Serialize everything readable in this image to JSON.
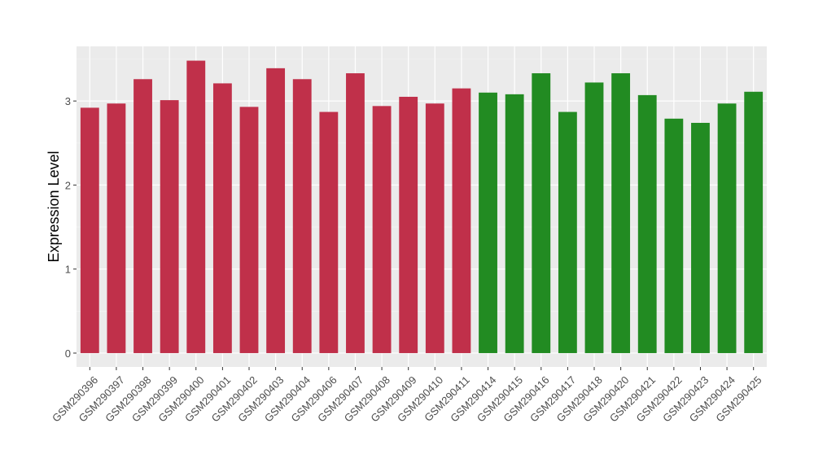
{
  "chart_data": {
    "type": "bar",
    "y_label": "Expression Level",
    "categories": [
      "GSM290396",
      "GSM290397",
      "GSM290398",
      "GSM290399",
      "GSM290400",
      "GSM290401",
      "GSM290402",
      "GSM290403",
      "GSM290404",
      "GSM290406",
      "GSM290407",
      "GSM290408",
      "GSM290409",
      "GSM290410",
      "GSM290411",
      "GSM290414",
      "GSM290415",
      "GSM290416",
      "GSM290417",
      "GSM290418",
      "GSM290420",
      "GSM290421",
      "GSM290422",
      "GSM290423",
      "GSM290424",
      "GSM290425"
    ],
    "values": [
      2.92,
      2.97,
      3.26,
      3.01,
      3.48,
      3.21,
      2.93,
      3.39,
      3.26,
      2.87,
      3.33,
      2.94,
      3.05,
      2.97,
      3.15,
      3.1,
      3.08,
      3.33,
      2.87,
      3.22,
      3.33,
      3.07,
      2.79,
      2.74,
      2.97,
      3.11
    ],
    "colors": [
      "#c0304a",
      "#c0304a",
      "#c0304a",
      "#c0304a",
      "#c0304a",
      "#c0304a",
      "#c0304a",
      "#c0304a",
      "#c0304a",
      "#c0304a",
      "#c0304a",
      "#c0304a",
      "#c0304a",
      "#c0304a",
      "#c0304a",
      "#228b22",
      "#228b22",
      "#228b22",
      "#228b22",
      "#228b22",
      "#228b22",
      "#228b22",
      "#228b22",
      "#228b22",
      "#228b22",
      "#228b22"
    ],
    "ylim": [
      -0.165,
      3.65
    ],
    "yticks": [
      0,
      1,
      2,
      3
    ],
    "minor_yticks": [
      0.5,
      1.5,
      2.5,
      3.5
    ],
    "grid": true
  }
}
